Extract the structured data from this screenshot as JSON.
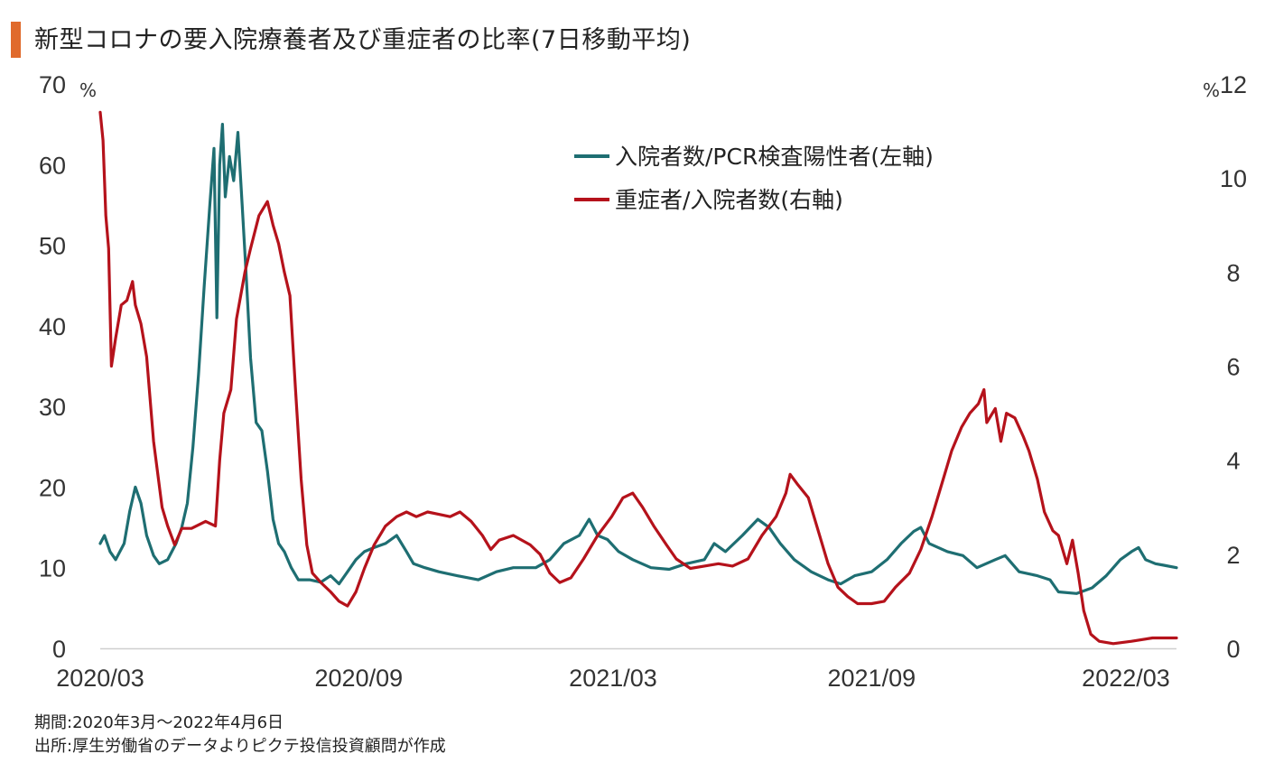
{
  "colors": {
    "accent": "#E06A2C",
    "teal": "#1E6E72",
    "red": "#B5121B",
    "axis": "#cfcfcf"
  },
  "title": "新型コロナの要入院療養者及び重症者の比率(7日移動平均)",
  "footnotes": {
    "period": "期間:2020年3月～2022年4月6日",
    "source": "出所:厚生労働省のデータよりピクテ投信投資顧問が作成"
  },
  "chart_data": {
    "type": "line",
    "x_range": [
      "2020-03-01",
      "2022-04-06"
    ],
    "x_ticks": [
      {
        "date": "2020-03-01",
        "label": "2020/03"
      },
      {
        "date": "2020-09-01",
        "label": "2020/09"
      },
      {
        "date": "2021-03-01",
        "label": "2021/03"
      },
      {
        "date": "2021-09-01",
        "label": "2021/09"
      },
      {
        "date": "2022-03-01",
        "label": "2022/03"
      }
    ],
    "y_left": {
      "unit": "%",
      "range": [
        0,
        70
      ],
      "ticks": [
        0,
        10,
        20,
        30,
        40,
        50,
        60,
        70
      ]
    },
    "y_right": {
      "unit": "%",
      "range": [
        0,
        12
      ],
      "ticks": [
        0,
        2,
        4,
        6,
        8,
        10,
        12
      ]
    },
    "legend_position": "top-right",
    "series": [
      {
        "name": "入院者数/PCR検査陽性者(左軸)",
        "axis": "left",
        "color": "#1E6E72",
        "points": [
          [
            "2020-03-01",
            13
          ],
          [
            "2020-03-04",
            14
          ],
          [
            "2020-03-08",
            12
          ],
          [
            "2020-03-12",
            11
          ],
          [
            "2020-03-18",
            13
          ],
          [
            "2020-03-22",
            17
          ],
          [
            "2020-03-26",
            20
          ],
          [
            "2020-03-30",
            18
          ],
          [
            "2020-04-03",
            14
          ],
          [
            "2020-04-08",
            11.5
          ],
          [
            "2020-04-12",
            10.5
          ],
          [
            "2020-04-18",
            11
          ],
          [
            "2020-04-24",
            13
          ],
          [
            "2020-04-28",
            15
          ],
          [
            "2020-05-02",
            18
          ],
          [
            "2020-05-06",
            25
          ],
          [
            "2020-05-10",
            34
          ],
          [
            "2020-05-14",
            45
          ],
          [
            "2020-05-18",
            55
          ],
          [
            "2020-05-21",
            62
          ],
          [
            "2020-05-23",
            41
          ],
          [
            "2020-05-25",
            60
          ],
          [
            "2020-05-27",
            65
          ],
          [
            "2020-05-29",
            56
          ],
          [
            "2020-06-01",
            61
          ],
          [
            "2020-06-04",
            58
          ],
          [
            "2020-06-07",
            64
          ],
          [
            "2020-06-10",
            55
          ],
          [
            "2020-06-13",
            46
          ],
          [
            "2020-06-16",
            36
          ],
          [
            "2020-06-20",
            28
          ],
          [
            "2020-06-24",
            27
          ],
          [
            "2020-06-28",
            22
          ],
          [
            "2020-07-02",
            16
          ],
          [
            "2020-07-06",
            13
          ],
          [
            "2020-07-10",
            12
          ],
          [
            "2020-07-15",
            10
          ],
          [
            "2020-07-20",
            8.5
          ],
          [
            "2020-07-28",
            8.5
          ],
          [
            "2020-08-05",
            8.2
          ],
          [
            "2020-08-12",
            9
          ],
          [
            "2020-08-18",
            8
          ],
          [
            "2020-08-24",
            9.5
          ],
          [
            "2020-08-30",
            11
          ],
          [
            "2020-09-05",
            12
          ],
          [
            "2020-09-12",
            12.5
          ],
          [
            "2020-09-20",
            13
          ],
          [
            "2020-09-28",
            14
          ],
          [
            "2020-10-05",
            12
          ],
          [
            "2020-10-10",
            10.5
          ],
          [
            "2020-10-18",
            10
          ],
          [
            "2020-10-28",
            9.5
          ],
          [
            "2020-11-10",
            9
          ],
          [
            "2020-11-25",
            8.5
          ],
          [
            "2020-12-08",
            9.5
          ],
          [
            "2020-12-20",
            10
          ],
          [
            "2021-01-05",
            10
          ],
          [
            "2021-01-15",
            11
          ],
          [
            "2021-01-25",
            13
          ],
          [
            "2021-02-05",
            14
          ],
          [
            "2021-02-12",
            16
          ],
          [
            "2021-02-18",
            14
          ],
          [
            "2021-02-25",
            13.5
          ],
          [
            "2021-03-05",
            12
          ],
          [
            "2021-03-15",
            11
          ],
          [
            "2021-03-28",
            10
          ],
          [
            "2021-04-10",
            9.8
          ],
          [
            "2021-04-22",
            10.5
          ],
          [
            "2021-05-05",
            11
          ],
          [
            "2021-05-12",
            13
          ],
          [
            "2021-05-20",
            12
          ],
          [
            "2021-06-01",
            14
          ],
          [
            "2021-06-12",
            16
          ],
          [
            "2021-06-20",
            15
          ],
          [
            "2021-06-28",
            13
          ],
          [
            "2021-07-08",
            11
          ],
          [
            "2021-07-20",
            9.5
          ],
          [
            "2021-08-01",
            8.5
          ],
          [
            "2021-08-10",
            8
          ],
          [
            "2021-08-20",
            9
          ],
          [
            "2021-09-01",
            9.5
          ],
          [
            "2021-09-12",
            11
          ],
          [
            "2021-09-22",
            13
          ],
          [
            "2021-10-01",
            14.5
          ],
          [
            "2021-10-06",
            15
          ],
          [
            "2021-10-12",
            13
          ],
          [
            "2021-10-25",
            12
          ],
          [
            "2021-11-05",
            11.5
          ],
          [
            "2021-11-15",
            10
          ],
          [
            "2021-11-28",
            11
          ],
          [
            "2021-12-05",
            11.5
          ],
          [
            "2021-12-15",
            9.5
          ],
          [
            "2021-12-28",
            9
          ],
          [
            "2022-01-06",
            8.5
          ],
          [
            "2022-01-12",
            7
          ],
          [
            "2022-01-25",
            6.8
          ],
          [
            "2022-02-05",
            7.5
          ],
          [
            "2022-02-15",
            9
          ],
          [
            "2022-02-25",
            11
          ],
          [
            "2022-03-05",
            12
          ],
          [
            "2022-03-10",
            12.5
          ],
          [
            "2022-03-15",
            11
          ],
          [
            "2022-03-22",
            10.5
          ],
          [
            "2022-03-28",
            10.3
          ],
          [
            "2022-04-06",
            10
          ]
        ]
      },
      {
        "name": "重症者/入院者数(右軸)",
        "axis": "right",
        "color": "#B5121B",
        "points": [
          [
            "2020-03-01",
            11.4
          ],
          [
            "2020-03-03",
            10.8
          ],
          [
            "2020-03-05",
            9.2
          ],
          [
            "2020-03-07",
            8.5
          ],
          [
            "2020-03-09",
            6.0
          ],
          [
            "2020-03-12",
            6.6
          ],
          [
            "2020-03-16",
            7.3
          ],
          [
            "2020-03-20",
            7.4
          ],
          [
            "2020-03-24",
            7.8
          ],
          [
            "2020-03-26",
            7.3
          ],
          [
            "2020-03-30",
            6.9
          ],
          [
            "2020-04-03",
            6.2
          ],
          [
            "2020-04-08",
            4.4
          ],
          [
            "2020-04-14",
            3.0
          ],
          [
            "2020-04-18",
            2.6
          ],
          [
            "2020-04-23",
            2.2
          ],
          [
            "2020-04-28",
            2.55
          ],
          [
            "2020-05-05",
            2.55
          ],
          [
            "2020-05-15",
            2.7
          ],
          [
            "2020-05-22",
            2.6
          ],
          [
            "2020-05-25",
            4.0
          ],
          [
            "2020-05-28",
            5.0
          ],
          [
            "2020-06-02",
            5.5
          ],
          [
            "2020-06-06",
            7.0
          ],
          [
            "2020-06-12",
            8.0
          ],
          [
            "2020-06-16",
            8.5
          ],
          [
            "2020-06-22",
            9.2
          ],
          [
            "2020-06-28",
            9.5
          ],
          [
            "2020-07-02",
            9.0
          ],
          [
            "2020-07-06",
            8.6
          ],
          [
            "2020-07-10",
            8.0
          ],
          [
            "2020-07-14",
            7.5
          ],
          [
            "2020-07-18",
            5.5
          ],
          [
            "2020-07-22",
            3.6
          ],
          [
            "2020-07-26",
            2.2
          ],
          [
            "2020-07-30",
            1.6
          ],
          [
            "2020-08-05",
            1.4
          ],
          [
            "2020-08-12",
            1.2
          ],
          [
            "2020-08-18",
            1.0
          ],
          [
            "2020-08-24",
            0.9
          ],
          [
            "2020-08-30",
            1.2
          ],
          [
            "2020-09-05",
            1.7
          ],
          [
            "2020-09-12",
            2.2
          ],
          [
            "2020-09-20",
            2.6
          ],
          [
            "2020-09-28",
            2.8
          ],
          [
            "2020-10-05",
            2.9
          ],
          [
            "2020-10-12",
            2.8
          ],
          [
            "2020-10-20",
            2.9
          ],
          [
            "2020-10-28",
            2.85
          ],
          [
            "2020-11-05",
            2.8
          ],
          [
            "2020-11-12",
            2.9
          ],
          [
            "2020-11-20",
            2.7
          ],
          [
            "2020-11-28",
            2.4
          ],
          [
            "2020-12-04",
            2.1
          ],
          [
            "2020-12-10",
            2.3
          ],
          [
            "2020-12-20",
            2.4
          ],
          [
            "2021-01-01",
            2.2
          ],
          [
            "2021-01-08",
            2.0
          ],
          [
            "2021-01-15",
            1.6
          ],
          [
            "2021-01-22",
            1.4
          ],
          [
            "2021-01-30",
            1.5
          ],
          [
            "2021-02-08",
            1.9
          ],
          [
            "2021-02-18",
            2.4
          ],
          [
            "2021-02-28",
            2.8
          ],
          [
            "2021-03-08",
            3.2
          ],
          [
            "2021-03-15",
            3.3
          ],
          [
            "2021-03-22",
            3.0
          ],
          [
            "2021-03-30",
            2.6
          ],
          [
            "2021-04-08",
            2.2
          ],
          [
            "2021-04-15",
            1.9
          ],
          [
            "2021-04-25",
            1.7
          ],
          [
            "2021-05-05",
            1.75
          ],
          [
            "2021-05-15",
            1.8
          ],
          [
            "2021-05-25",
            1.75
          ],
          [
            "2021-06-05",
            1.9
          ],
          [
            "2021-06-15",
            2.4
          ],
          [
            "2021-06-25",
            2.8
          ],
          [
            "2021-07-02",
            3.3
          ],
          [
            "2021-07-05",
            3.7
          ],
          [
            "2021-07-10",
            3.5
          ],
          [
            "2021-07-18",
            3.2
          ],
          [
            "2021-07-25",
            2.5
          ],
          [
            "2021-08-01",
            1.8
          ],
          [
            "2021-08-08",
            1.3
          ],
          [
            "2021-08-15",
            1.1
          ],
          [
            "2021-08-22",
            0.95
          ],
          [
            "2021-09-01",
            0.95
          ],
          [
            "2021-09-10",
            1.0
          ],
          [
            "2021-09-18",
            1.3
          ],
          [
            "2021-09-28",
            1.6
          ],
          [
            "2021-10-06",
            2.1
          ],
          [
            "2021-10-14",
            2.8
          ],
          [
            "2021-10-22",
            3.6
          ],
          [
            "2021-10-28",
            4.2
          ],
          [
            "2021-11-04",
            4.7
          ],
          [
            "2021-11-10",
            5.0
          ],
          [
            "2021-11-16",
            5.2
          ],
          [
            "2021-11-20",
            5.5
          ],
          [
            "2021-11-22",
            4.8
          ],
          [
            "2021-11-28",
            5.1
          ],
          [
            "2021-12-02",
            4.4
          ],
          [
            "2021-12-06",
            5.0
          ],
          [
            "2021-12-12",
            4.9
          ],
          [
            "2021-12-18",
            4.5
          ],
          [
            "2021-12-22",
            4.2
          ],
          [
            "2021-12-28",
            3.6
          ],
          [
            "2022-01-02",
            2.9
          ],
          [
            "2022-01-08",
            2.5
          ],
          [
            "2022-01-12",
            2.4
          ],
          [
            "2022-01-18",
            1.8
          ],
          [
            "2022-01-22",
            2.3
          ],
          [
            "2022-01-26",
            1.6
          ],
          [
            "2022-01-30",
            0.8
          ],
          [
            "2022-02-04",
            0.3
          ],
          [
            "2022-02-10",
            0.15
          ],
          [
            "2022-02-20",
            0.1
          ],
          [
            "2022-03-05",
            0.15
          ],
          [
            "2022-03-20",
            0.22
          ],
          [
            "2022-04-06",
            0.22
          ]
        ]
      }
    ]
  }
}
